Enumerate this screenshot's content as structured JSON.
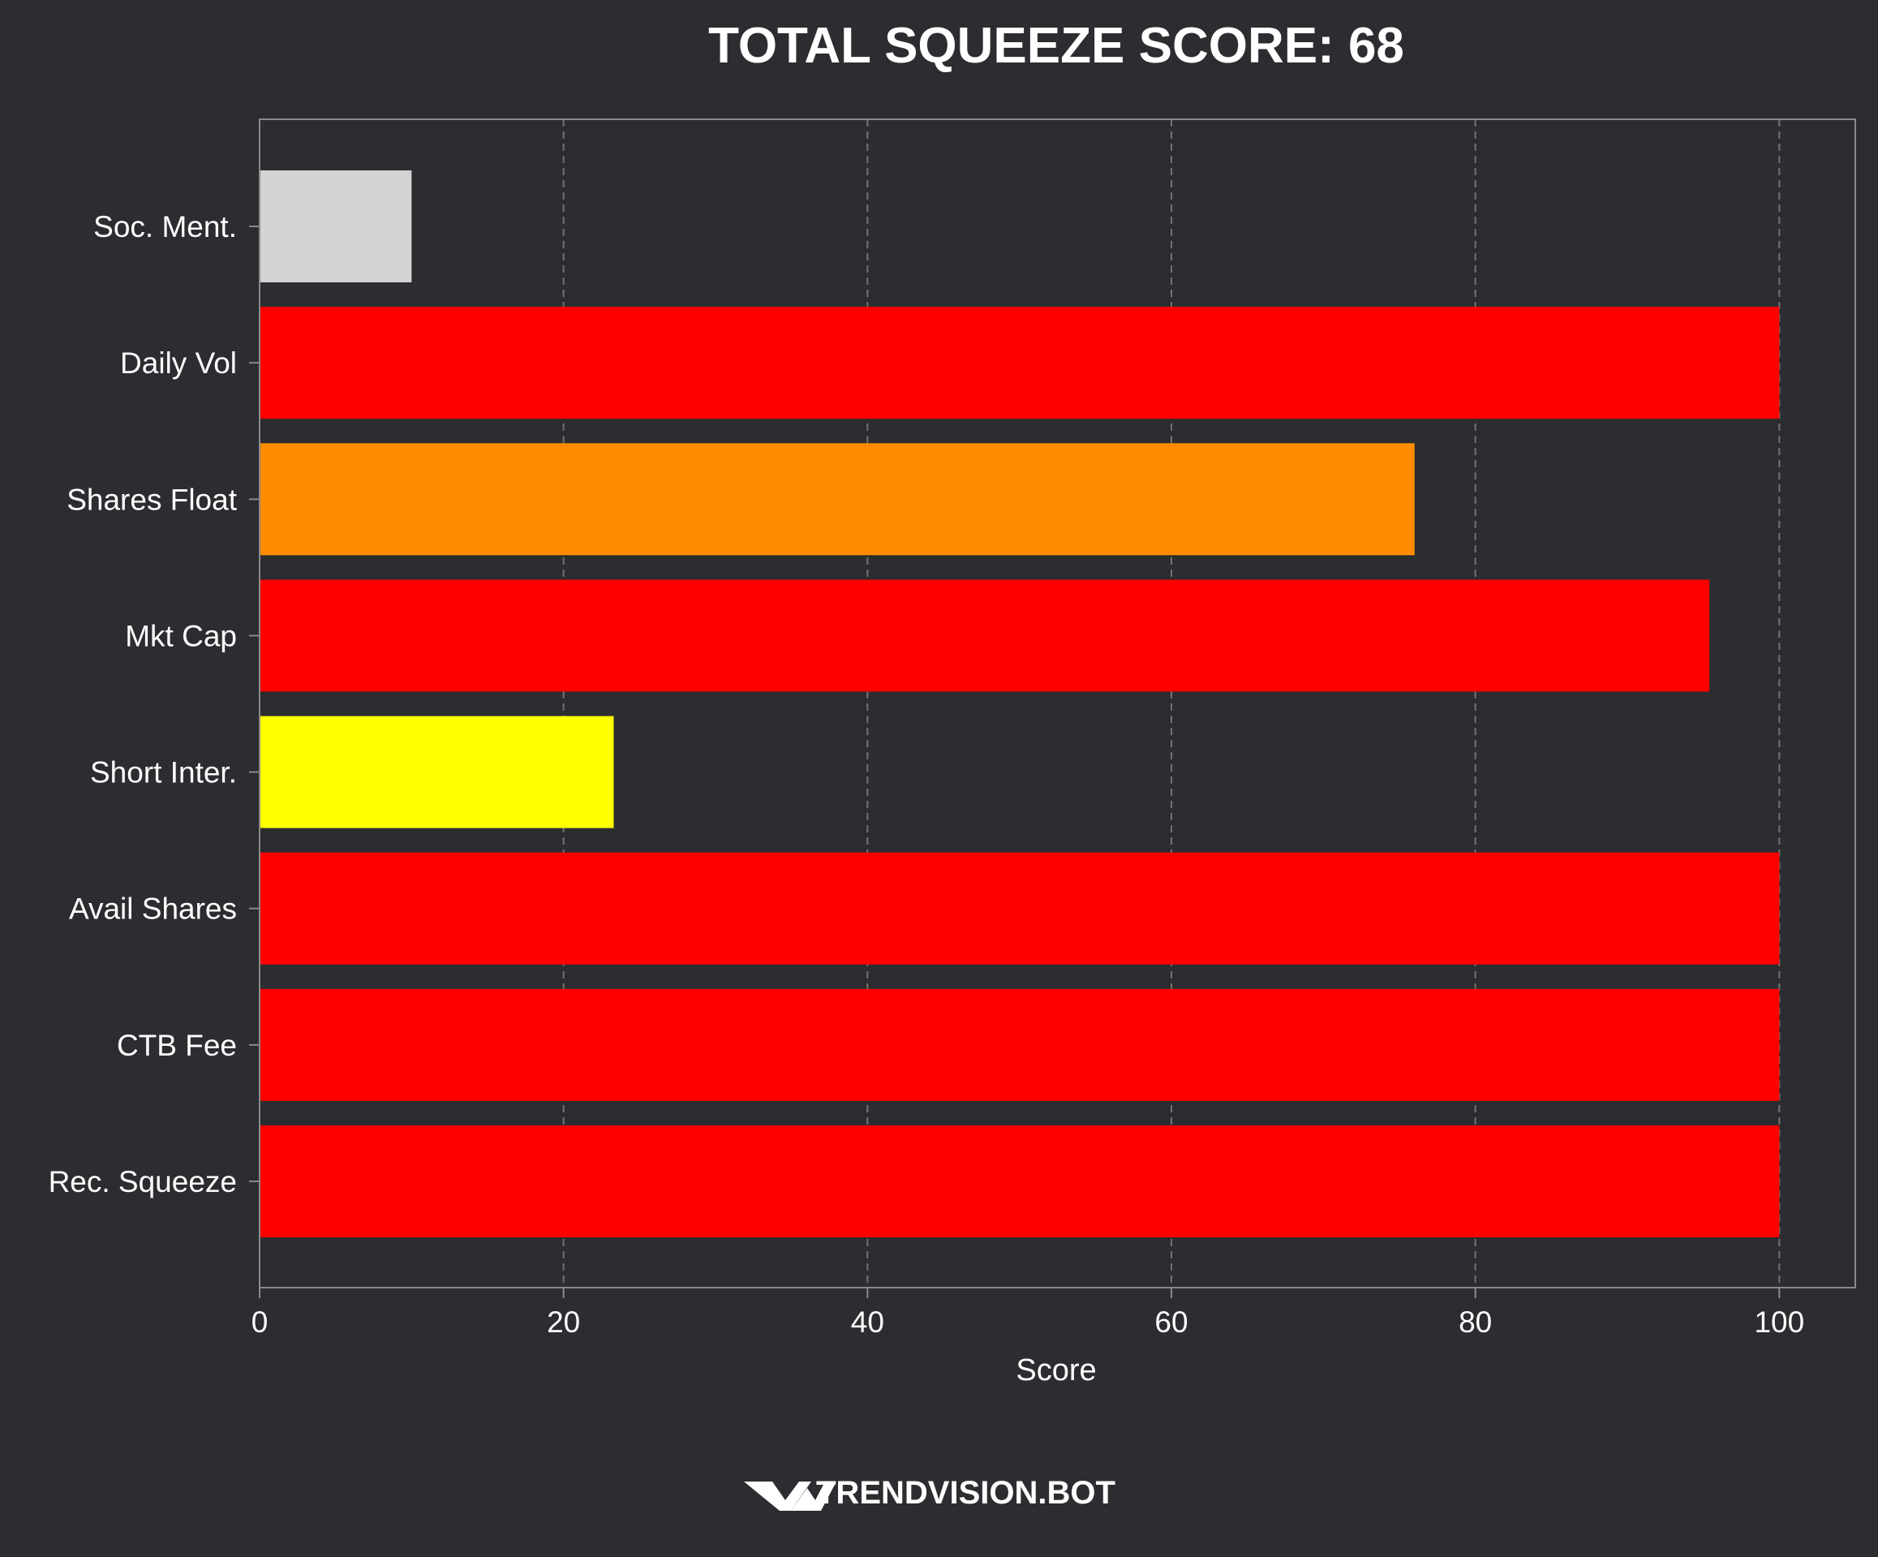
{
  "chart_data": {
    "type": "bar",
    "orientation": "horizontal",
    "title": "TOTAL SQUEEZE SCORE: 68",
    "xlabel": "Score",
    "ylabel": "",
    "xlim": [
      0,
      105
    ],
    "x_ticks": [
      0,
      20,
      40,
      60,
      80,
      100
    ],
    "grid": "x-dashed",
    "categories": [
      "Soc. Ment.",
      "Daily Vol",
      "Shares Float",
      "Mkt Cap",
      "Short Inter.",
      "Avail Shares",
      "CTB Fee",
      "Rec. Squeeze"
    ],
    "values": [
      10,
      100,
      76,
      95.4,
      23.3,
      100,
      100,
      100
    ],
    "bar_colors": [
      "#d3d3d3",
      "#ff0000",
      "#ff8c00",
      "#ff0000",
      "#ffff00",
      "#ff0000",
      "#ff0000",
      "#ff0000"
    ]
  },
  "brand": {
    "name": "TRENDVISION.BOT",
    "icon": "trendvision-logo-icon"
  },
  "colors": {
    "background": "#2b2d30",
    "text": "#ffffff",
    "spine": "#8a8a8a",
    "grid": "#7a7a7a"
  }
}
